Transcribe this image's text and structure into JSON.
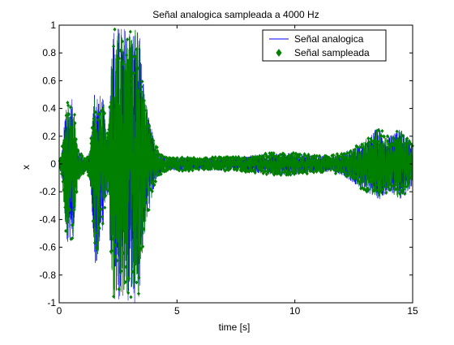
{
  "chart_data": {
    "type": "line",
    "title": "Señal analogica sampleada a 4000 Hz",
    "xlabel": "time [s]",
    "ylabel": "x",
    "xlim": [
      0,
      15
    ],
    "ylim": [
      -1,
      1
    ],
    "x_ticks": [
      0,
      5,
      10,
      15
    ],
    "x_tick_labels": [
      "0",
      "5",
      "10",
      "15"
    ],
    "y_ticks": [
      -1,
      -0.8,
      -0.6,
      -0.4,
      -0.2,
      0,
      0.2,
      0.4,
      0.6,
      0.8,
      1
    ],
    "y_tick_labels": [
      "-1",
      "-0.8",
      "-0.6",
      "-0.4",
      "-0.2",
      "0",
      "0.2",
      "0.4",
      "0.6",
      "0.8",
      "1"
    ],
    "grid": false,
    "legend_position": "top-right",
    "legend": [
      {
        "label": "Señal analogica",
        "style": "line",
        "color": "#0000ff"
      },
      {
        "label": "Señal sampleada",
        "style": "marker",
        "color": "#008000"
      }
    ],
    "envelope": {
      "t": [
        0,
        0.1,
        0.2,
        0.3,
        0.4,
        0.5,
        0.6,
        0.7,
        0.8,
        0.9,
        1.0,
        1.1,
        1.2,
        1.3,
        1.4,
        1.5,
        1.6,
        1.7,
        1.8,
        1.9,
        2.0,
        2.1,
        2.2,
        2.3,
        2.4,
        2.5,
        2.6,
        2.7,
        2.8,
        2.9,
        3.0,
        3.1,
        3.2,
        3.3,
        3.4,
        3.5,
        3.6,
        3.7,
        3.8,
        3.9,
        4.0,
        4.2,
        4.4,
        4.6,
        4.8,
        5.0,
        5.5,
        6.0,
        6.5,
        7.0,
        7.5,
        8.0,
        8.5,
        9.0,
        9.5,
        10.0,
        10.5,
        11.0,
        11.5,
        12.0,
        12.5,
        12.8,
        13.0,
        13.2,
        13.4,
        13.6,
        13.8,
        14.0,
        14.2,
        14.4,
        14.6,
        14.8,
        15.0
      ],
      "upper": [
        0.02,
        0.08,
        0.25,
        0.5,
        0.45,
        0.46,
        0.48,
        0.25,
        0.12,
        0.08,
        0.06,
        0.05,
        0.06,
        0.1,
        0.3,
        0.6,
        0.55,
        0.5,
        0.5,
        0.45,
        0.2,
        0.3,
        0.8,
        1.0,
        1.0,
        1.0,
        1.0,
        1.0,
        1.0,
        1.0,
        1.0,
        1.0,
        1.0,
        1.0,
        0.95,
        0.7,
        0.55,
        0.45,
        0.35,
        0.28,
        0.2,
        0.1,
        0.06,
        0.05,
        0.05,
        0.05,
        0.05,
        0.04,
        0.05,
        0.05,
        0.05,
        0.06,
        0.07,
        0.08,
        0.08,
        0.08,
        0.07,
        0.06,
        0.06,
        0.08,
        0.12,
        0.15,
        0.18,
        0.2,
        0.25,
        0.27,
        0.22,
        0.2,
        0.22,
        0.26,
        0.24,
        0.18,
        0.15
      ],
      "lower": [
        -0.02,
        -0.1,
        -0.3,
        -0.55,
        -0.6,
        -0.55,
        -0.55,
        -0.3,
        -0.14,
        -0.1,
        -0.08,
        -0.06,
        -0.07,
        -0.12,
        -0.35,
        -0.75,
        -0.75,
        -0.6,
        -0.5,
        -0.45,
        -0.2,
        -0.3,
        -0.85,
        -1.0,
        -1.0,
        -1.0,
        -1.0,
        -1.0,
        -1.0,
        -1.0,
        -1.0,
        -1.0,
        -1.0,
        -1.0,
        -0.95,
        -0.7,
        -0.55,
        -0.45,
        -0.35,
        -0.28,
        -0.2,
        -0.1,
        -0.06,
        -0.05,
        -0.05,
        -0.05,
        -0.05,
        -0.04,
        -0.05,
        -0.05,
        -0.05,
        -0.06,
        -0.07,
        -0.08,
        -0.08,
        -0.08,
        -0.07,
        -0.06,
        -0.06,
        -0.08,
        -0.14,
        -0.18,
        -0.2,
        -0.22,
        -0.24,
        -0.26,
        -0.22,
        -0.2,
        -0.24,
        -0.28,
        -0.25,
        -0.2,
        -0.16
      ]
    }
  }
}
